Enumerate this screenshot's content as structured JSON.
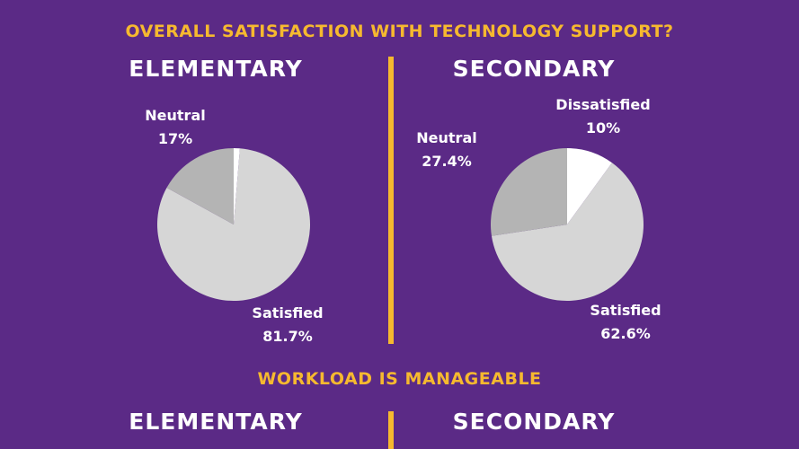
{
  "colors": {
    "background": "#5b2a86",
    "accent": "#f6b92f",
    "text": "#ffffff",
    "satisfied": "#d6d6d6",
    "neutral": "#b4b4b4",
    "dissatisfied": "#ffffff"
  },
  "sections": [
    {
      "title": "OVERALL SATISFACTION WITH TECHNOLOGY SUPPORT?",
      "left_heading": "ELEMENTARY",
      "right_heading": "SECONDARY"
    },
    {
      "title": "WORKLOAD IS MANAGEABLE",
      "left_heading": "ELEMENTARY",
      "right_heading": "SECONDARY"
    }
  ],
  "chart_data": [
    {
      "type": "pie",
      "title": "ELEMENTARY",
      "start": "top, clockwise",
      "slices": [
        {
          "name": "Dissatisfied",
          "value": 1.3,
          "label": "",
          "pct_label": ""
        },
        {
          "name": "Satisfied",
          "value": 81.7,
          "label": "Satisfied",
          "pct_label": "81.7%"
        },
        {
          "name": "Neutral",
          "value": 17,
          "label": "Neutral",
          "pct_label": "17%"
        }
      ]
    },
    {
      "type": "pie",
      "title": "SECONDARY",
      "start": "top, clockwise",
      "slices": [
        {
          "name": "Dissatisfied",
          "value": 10,
          "label": "Dissatisfied",
          "pct_label": "10%"
        },
        {
          "name": "Satisfied",
          "value": 62.6,
          "label": "Satisfied",
          "pct_label": "62.6%"
        },
        {
          "name": "Neutral",
          "value": 27.4,
          "label": "Neutral",
          "pct_label": "27.4%"
        }
      ]
    }
  ]
}
